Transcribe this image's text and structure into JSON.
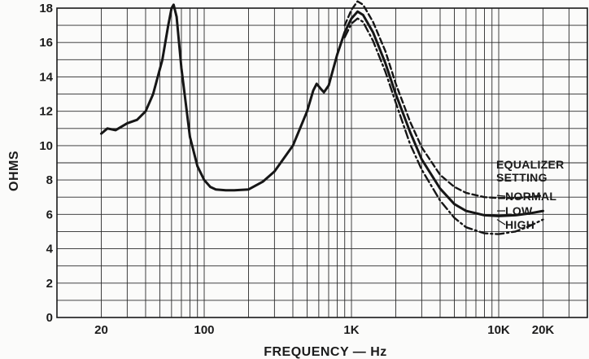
{
  "chart_data": {
    "type": "line",
    "xscale": "log",
    "xlabel": "FREQUENCY — Hz",
    "ylabel": "OHMS",
    "xlim": [
      10,
      40000
    ],
    "ylim": [
      0,
      18
    ],
    "grid": true,
    "x_tick_labels": [
      {
        "value": 20,
        "label": "20"
      },
      {
        "value": 100,
        "label": "100"
      },
      {
        "value": 1000,
        "label": "1K"
      },
      {
        "value": 10000,
        "label": "10K"
      },
      {
        "value": 20000,
        "label": "20K"
      }
    ],
    "y_ticks": [
      0,
      2,
      4,
      6,
      8,
      10,
      12,
      14,
      16,
      18
    ],
    "legend": {
      "title_lines": [
        "EQUALIZER",
        "SETTING"
      ],
      "placement": "right"
    },
    "series": [
      {
        "name": "NORMAL",
        "style": "solid",
        "points": [
          [
            20,
            10.7
          ],
          [
            22,
            11.0
          ],
          [
            25,
            10.9
          ],
          [
            30,
            11.3
          ],
          [
            35,
            11.5
          ],
          [
            40,
            12.0
          ],
          [
            45,
            13.0
          ],
          [
            52,
            15.0
          ],
          [
            57,
            17.0
          ],
          [
            60,
            18.0
          ],
          [
            62,
            18.2
          ],
          [
            65,
            17.5
          ],
          [
            70,
            14.5
          ],
          [
            80,
            10.5
          ],
          [
            90,
            8.8
          ],
          [
            100,
            8.0
          ],
          [
            110,
            7.6
          ],
          [
            120,
            7.45
          ],
          [
            140,
            7.4
          ],
          [
            160,
            7.4
          ],
          [
            200,
            7.45
          ],
          [
            250,
            7.9
          ],
          [
            300,
            8.5
          ],
          [
            400,
            10.0
          ],
          [
            500,
            12.0
          ],
          [
            550,
            13.2
          ],
          [
            580,
            13.6
          ],
          [
            620,
            13.3
          ],
          [
            650,
            13.1
          ],
          [
            700,
            13.5
          ],
          [
            800,
            15.3
          ],
          [
            900,
            16.6
          ],
          [
            1000,
            17.4
          ],
          [
            1100,
            17.8
          ],
          [
            1200,
            17.6
          ],
          [
            1400,
            16.6
          ],
          [
            1700,
            14.8
          ],
          [
            2000,
            13.0
          ],
          [
            2500,
            10.8
          ],
          [
            3000,
            9.2
          ],
          [
            4000,
            7.5
          ],
          [
            5000,
            6.6
          ],
          [
            6000,
            6.2
          ],
          [
            8000,
            5.95
          ],
          [
            10000,
            5.9
          ],
          [
            13000,
            5.95
          ],
          [
            16000,
            6.05
          ],
          [
            20000,
            6.2
          ]
        ]
      },
      {
        "name": "LOW",
        "style": "dashed",
        "points": [
          [
            900,
            17.0
          ],
          [
            1000,
            17.9
          ],
          [
            1100,
            18.4
          ],
          [
            1200,
            18.2
          ],
          [
            1400,
            17.2
          ],
          [
            1700,
            15.5
          ],
          [
            2000,
            13.6
          ],
          [
            2500,
            11.4
          ],
          [
            3000,
            9.9
          ],
          [
            4000,
            8.3
          ],
          [
            5000,
            7.6
          ],
          [
            6000,
            7.25
          ],
          [
            8000,
            7.0
          ],
          [
            10000,
            6.95
          ],
          [
            13000,
            6.95
          ],
          [
            16000,
            7.0
          ],
          [
            20000,
            7.1
          ]
        ]
      },
      {
        "name": "HIGH",
        "style": "dash-dot",
        "points": [
          [
            900,
            16.3
          ],
          [
            1000,
            17.1
          ],
          [
            1100,
            17.4
          ],
          [
            1200,
            17.2
          ],
          [
            1400,
            16.1
          ],
          [
            1700,
            14.3
          ],
          [
            2000,
            12.5
          ],
          [
            2500,
            10.1
          ],
          [
            3000,
            8.6
          ],
          [
            4000,
            6.8
          ],
          [
            5000,
            5.8
          ],
          [
            6000,
            5.25
          ],
          [
            8000,
            4.9
          ],
          [
            10000,
            4.85
          ],
          [
            13000,
            5.0
          ],
          [
            16000,
            5.3
          ],
          [
            20000,
            5.7
          ]
        ]
      }
    ]
  }
}
